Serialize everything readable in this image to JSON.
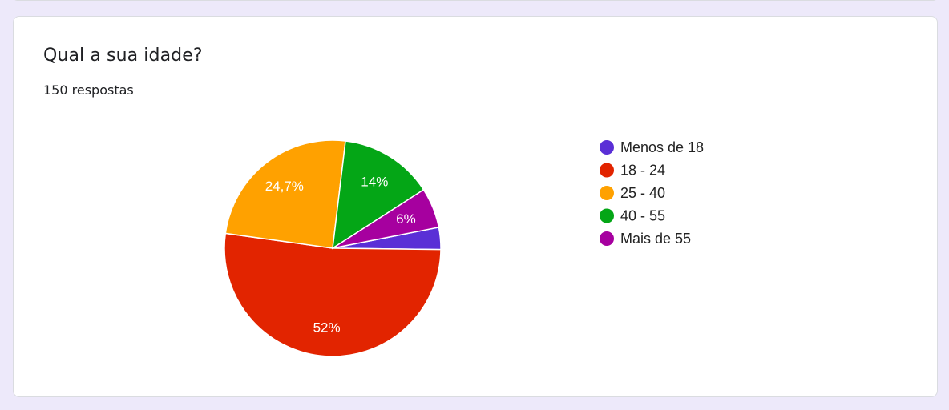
{
  "question": {
    "title": "Qual a sua idade?",
    "responses": "150 respostas"
  },
  "chart_data": {
    "type": "pie",
    "categories": [
      "Menos de 18",
      "18 - 24",
      "25 - 40",
      "40 - 55",
      "Mais de 55"
    ],
    "values": [
      3.3,
      52,
      24.7,
      14,
      6
    ],
    "labels": [
      "",
      "52%",
      "24,7%",
      "14%",
      "6%"
    ],
    "colors": [
      "#5a2fd6",
      "#e22400",
      "#ffa100",
      "#04a616",
      "#a6009f"
    ],
    "legend_position": "right"
  }
}
